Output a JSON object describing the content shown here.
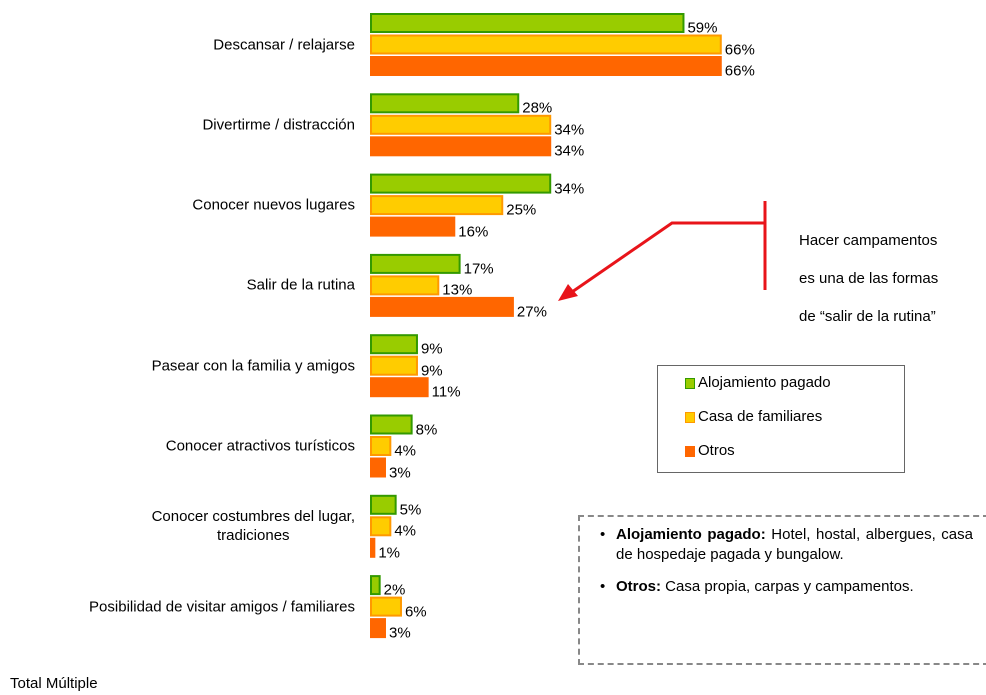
{
  "chart_data": {
    "type": "bar",
    "orientation": "horizontal",
    "categories": [
      "Descansar / relajarse",
      "Divertirme / distracción",
      "Conocer nuevos lugares",
      "Salir de la rutina",
      "Pasear con la familia y amigos",
      "Conocer atractivos turísticos",
      "Conocer costumbres del lugar,\ntradiciones",
      "Posibilidad de visitar amigos / familiares"
    ],
    "series": [
      {
        "name": "Alojamiento pagado",
        "color": "#99cc00",
        "border": "#339900",
        "values": [
          59,
          28,
          34,
          17,
          9,
          8,
          5,
          2
        ],
        "value_labels": [
          "59%",
          "28%",
          "34%",
          "17%",
          "9%",
          "8%",
          "5%",
          "2%"
        ]
      },
      {
        "name": "Casa de familiares",
        "color": "#ffcc00",
        "border": "#ff9900",
        "values": [
          66,
          34,
          25,
          13,
          9,
          4,
          4,
          6
        ],
        "value_labels": [
          "66%",
          "34%",
          "25%",
          "13%",
          "9%",
          "4%",
          "4%",
          "6%"
        ]
      },
      {
        "name": "Otros",
        "color": "#ff6600",
        "border": "#ff6600",
        "values": [
          66,
          34,
          16,
          27,
          11,
          3,
          1,
          3
        ],
        "value_labels": [
          "66%",
          "34%",
          "16%",
          "27%",
          "11%",
          "3%",
          "1%",
          "3%"
        ]
      }
    ],
    "annotation": [
      "Hacer campamentos",
      "es una de las formas",
      "de “salir de la rutina”"
    ],
    "notes": [
      {
        "term": "Alojamiento pagado:",
        "text": "Hotel, hostal, albergues, casa de hospedaje pagada y bungalow."
      },
      {
        "term": "Otros:",
        "text": "Casa propia, carpas y campamentos."
      }
    ],
    "footer": "Total Múltiple"
  }
}
